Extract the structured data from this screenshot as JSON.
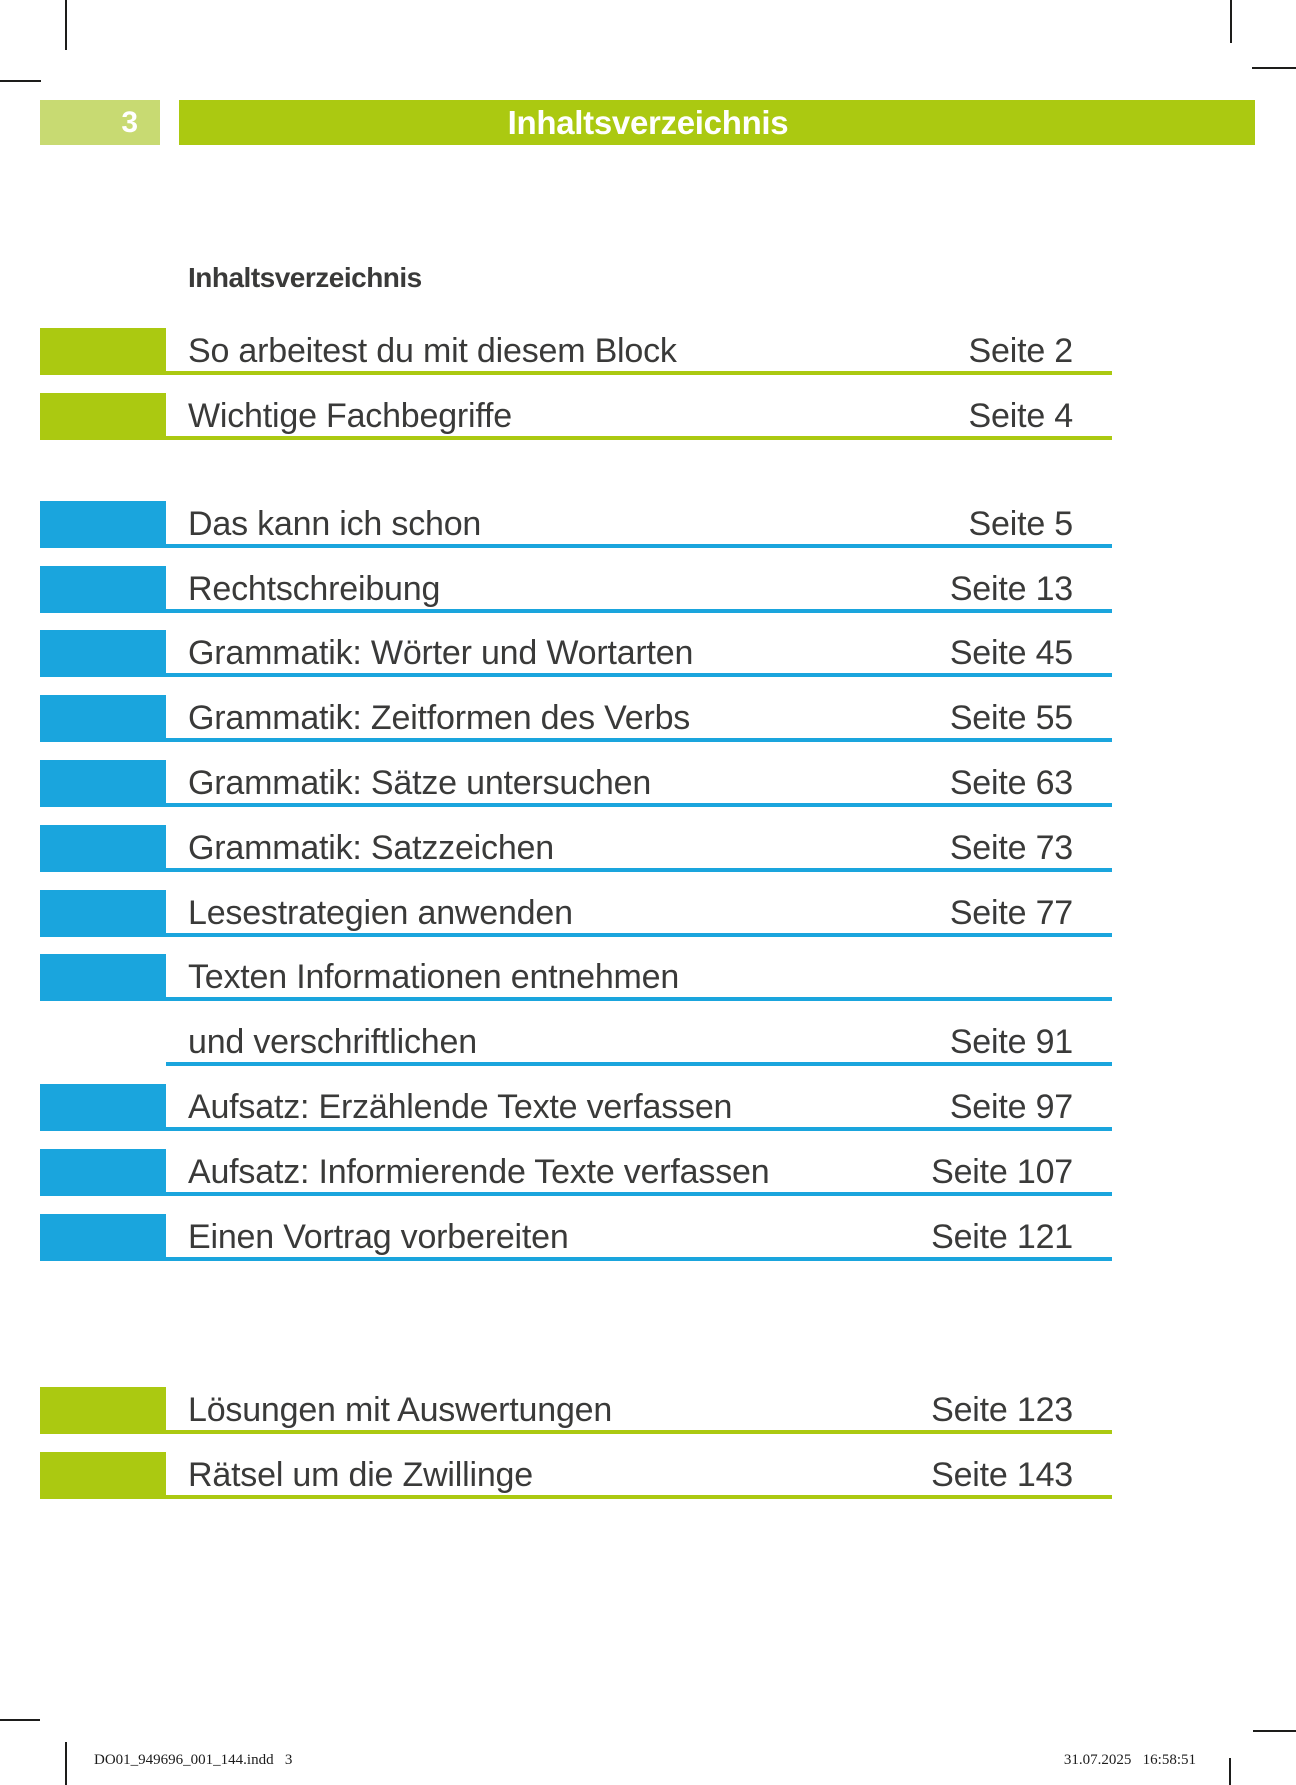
{
  "page_header": {
    "page_number": "3",
    "bar_title": "Inhaltsverzeichnis"
  },
  "heading": "Inhaltsverzeichnis",
  "toc": {
    "entries": [
      {
        "title": "So arbeitest du mit diesem Block",
        "page": "Seite 2",
        "color": "green",
        "block": true
      },
      {
        "title": "Wichtige Fachbegriffe",
        "page": "Seite 4",
        "color": "green",
        "block": true
      },
      {
        "title": "Das kann ich schon",
        "page": "Seite 5",
        "color": "blue",
        "block": true
      },
      {
        "title": "Rechtschreibung",
        "page": "Seite 13",
        "color": "blue",
        "block": true
      },
      {
        "title": "Grammatik: Wörter und Wortarten",
        "page": "Seite 45",
        "color": "blue",
        "block": true
      },
      {
        "title": "Grammatik: Zeitformen des Verbs",
        "page": "Seite 55",
        "color": "blue",
        "block": true
      },
      {
        "title": "Grammatik: Sätze untersuchen",
        "page": "Seite 63",
        "color": "blue",
        "block": true
      },
      {
        "title": "Grammatik: Satzzeichen",
        "page": "Seite 73",
        "color": "blue",
        "block": true
      },
      {
        "title": "Lesestrategien anwenden",
        "page": "Seite 77",
        "color": "blue",
        "block": true
      },
      {
        "title": "Texten Informationen entnehmen",
        "page": "",
        "color": "blue",
        "block": true
      },
      {
        "title": "und verschriftlichen",
        "page": "Seite 91",
        "color": "blue",
        "block": false
      },
      {
        "title": "Aufsatz: Erzählende Texte verfassen",
        "page": "Seite 97",
        "color": "blue",
        "block": true
      },
      {
        "title": "Aufsatz: Informierende Texte verfassen",
        "page": "Seite 107",
        "color": "blue",
        "block": true
      },
      {
        "title": "Einen Vortrag vorbereiten",
        "page": "Seite 121",
        "color": "blue",
        "block": true
      },
      {
        "title": "Lösungen mit Auswertungen",
        "page": "Seite 123",
        "color": "green",
        "block": true
      },
      {
        "title": "Rätsel um die Zwillinge",
        "page": "Seite 143",
        "color": "green",
        "block": true
      }
    ]
  },
  "footer": {
    "left": "DO01_949696_001_144.indd   3",
    "right": "31.07.2025   16:58:51"
  },
  "colors": {
    "green": "#abc911",
    "light_green": "#c8da72",
    "blue": "#1aa5dd",
    "text": "#3a3a39"
  }
}
